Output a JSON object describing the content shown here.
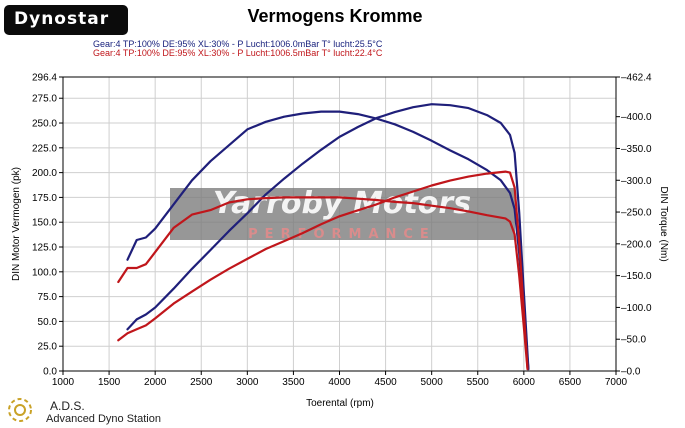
{
  "header": {
    "brand": "Dynostar",
    "title": "Vermogens Kromme",
    "conditions_run1": "Gear:4 TP:100% DE:95% XL:30%   - P Lucht:1006.0mBar T° lucht:25.5°C",
    "conditions_run2": "Gear:4 TP:100% DE:95% XL:30%   - P Lucht:1006.5mBar T° lucht:22.4°C"
  },
  "watermark": {
    "line1": "Yarroby Motors",
    "line2": "PERFORMANCE"
  },
  "footer": {
    "name": "A.D.S.",
    "subtitle": "Advanced Dyno Station"
  },
  "chart_data": {
    "type": "line",
    "xlabel": "Toerental (rpm)",
    "ylabel": "DIN Motor Vermogen (pk)",
    "y2label": "DIN Torque (Nm)",
    "xlim": [
      1000,
      7000
    ],
    "ylim": [
      0,
      296.4
    ],
    "y2lim": [
      0,
      462.4
    ],
    "x_ticks": [
      "1000",
      "1500",
      "2000",
      "2500",
      "3000",
      "3500",
      "4000",
      "4500",
      "5000",
      "5500",
      "6000",
      "6500",
      "7000"
    ],
    "y_ticks": [
      "0.0",
      "25.0",
      "50.0",
      "75.0",
      "100.0",
      "125.0",
      "150.0",
      "175.0",
      "200.0",
      "225.0",
      "250.0",
      "275.0",
      "296.4"
    ],
    "y2_ticks": [
      "0.0",
      "50.0",
      "100.0",
      "150.0",
      "200.0",
      "250.0",
      "300.0",
      "350.0",
      "400.0",
      "462.4"
    ],
    "grid": true,
    "colors": {
      "run1": "#1f1f7a",
      "run2": "#c0161b"
    },
    "series": [
      {
        "run": "run1",
        "quantity": "power",
        "axis": "left",
        "x": [
          1700,
          1800,
          1900,
          2000,
          2200,
          2400,
          2600,
          2800,
          3000,
          3200,
          3400,
          3600,
          3800,
          4000,
          4200,
          4400,
          4600,
          4800,
          5000,
          5200,
          5400,
          5600,
          5750,
          5850,
          5900,
          5950,
          6000,
          6050
        ],
        "y": [
          42,
          52,
          57,
          64,
          83,
          103,
          122,
          141,
          159,
          178,
          194,
          209,
          223,
          236,
          246,
          255,
          261,
          266,
          269,
          268,
          265,
          258,
          250,
          238,
          220,
          160,
          80,
          2
        ]
      },
      {
        "run": "run1",
        "quantity": "torque",
        "axis": "right",
        "x": [
          1700,
          1800,
          1900,
          2000,
          2200,
          2400,
          2600,
          2800,
          3000,
          3200,
          3400,
          3600,
          3800,
          4000,
          4200,
          4400,
          4600,
          4800,
          5000,
          5200,
          5400,
          5600,
          5750,
          5850,
          5900,
          5950,
          6000,
          6050
        ],
        "y": [
          175,
          206,
          210,
          224,
          262,
          300,
          330,
          355,
          380,
          392,
          400,
          405,
          408,
          408,
          404,
          397,
          388,
          376,
          362,
          347,
          333,
          316,
          300,
          280,
          255,
          185,
          90,
          3
        ]
      },
      {
        "run": "run2",
        "quantity": "power",
        "axis": "left",
        "x": [
          1600,
          1700,
          1800,
          1900,
          2000,
          2200,
          2400,
          2600,
          2800,
          3000,
          3200,
          3400,
          3600,
          3800,
          4000,
          4200,
          4400,
          4600,
          4800,
          5000,
          5200,
          5400,
          5600,
          5800,
          5850,
          5900,
          5950,
          6000,
          6040
        ],
        "y": [
          31,
          38,
          42,
          46,
          53,
          68,
          80,
          92,
          103,
          113,
          123,
          131,
          139,
          148,
          156,
          162,
          168,
          175,
          181,
          187,
          192,
          196,
          199,
          201,
          200,
          185,
          130,
          60,
          3
        ]
      },
      {
        "run": "run2",
        "quantity": "torque",
        "axis": "right",
        "x": [
          1600,
          1700,
          1800,
          1900,
          2000,
          2200,
          2400,
          2600,
          2800,
          3000,
          3200,
          3400,
          3600,
          3800,
          4000,
          4200,
          4400,
          4600,
          4800,
          5000,
          5200,
          5400,
          5600,
          5800,
          5850,
          5900,
          5950,
          6000,
          6040
        ],
        "y": [
          140,
          162,
          162,
          168,
          187,
          225,
          246,
          253,
          265,
          270,
          272,
          273,
          273,
          273,
          273,
          271,
          269,
          266,
          264,
          260,
          256,
          251,
          245,
          240,
          235,
          215,
          150,
          70,
          3
        ]
      }
    ]
  }
}
